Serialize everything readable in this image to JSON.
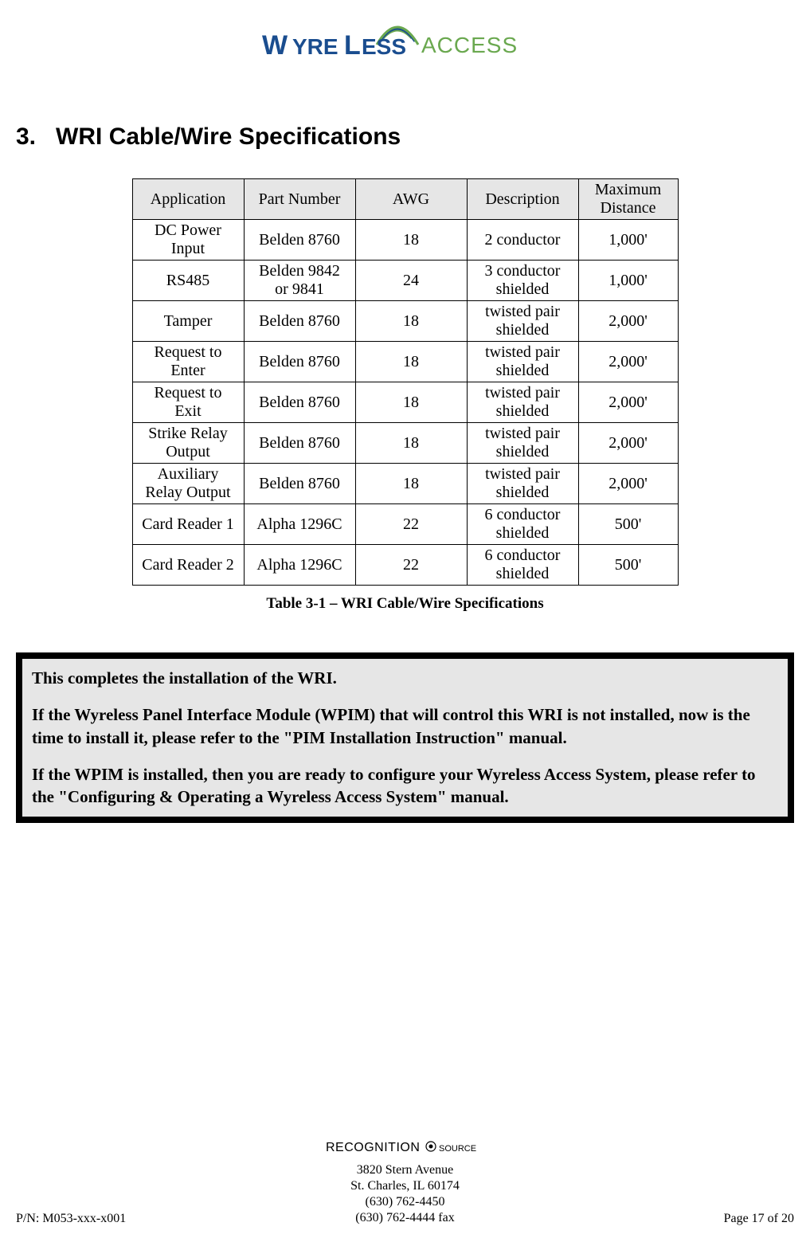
{
  "header": {
    "logo_text_main": "WYRELESS",
    "logo_text_sub": "ACCESS",
    "logo_color_main": "#1a4d8f",
    "logo_color_sub": "#6aa84f",
    "logo_arc_color1": "#6aa84f",
    "logo_arc_color2": "#1a4d8f"
  },
  "section": {
    "number": "3.",
    "title": "WRI Cable/Wire Specifications"
  },
  "table": {
    "columns": [
      "Application",
      "Part Number",
      "AWG",
      "Description",
      "Maximum Distance"
    ],
    "header_bg": "#e6e6e6",
    "border_color": "#000000",
    "rows": [
      [
        "DC Power Input",
        "Belden 8760",
        "18",
        "2 conductor",
        "1,000'"
      ],
      [
        "RS485",
        "Belden 9842 or 9841",
        "24",
        "3 conductor shielded",
        "1,000'"
      ],
      [
        "Tamper",
        "Belden 8760",
        "18",
        "twisted pair shielded",
        "2,000'"
      ],
      [
        "Request to Enter",
        "Belden 8760",
        "18",
        "twisted pair shielded",
        "2,000'"
      ],
      [
        "Request to Exit",
        "Belden 8760",
        "18",
        "twisted pair shielded",
        "2,000'"
      ],
      [
        "Strike Relay Output",
        "Belden 8760",
        "18",
        "twisted pair shielded",
        "2,000'"
      ],
      [
        "Auxiliary Relay Output",
        "Belden 8760",
        "18",
        "twisted pair shielded",
        "2,000'"
      ],
      [
        "Card Reader 1",
        "Alpha 1296C",
        "22",
        "6 conductor shielded",
        "500'"
      ],
      [
        "Card Reader 2",
        "Alpha 1296C",
        "22",
        "6 conductor shielded",
        "500'"
      ]
    ],
    "caption": "Table 3-1 – WRI Cable/Wire Specifications"
  },
  "info_box": {
    "outer_bg": "#000000",
    "inner_bg": "#e6e6e6",
    "paragraphs": [
      "This completes the installation of the WRI.",
      "If the Wyreless Panel Interface Module (WPIM) that will control this WRI is not installed, now is the time to install it, please refer to the \"PIM Installation Instruction\" manual.",
      "If the WPIM is installed, then you are ready to configure your Wyreless Access  System, please refer to the \"Configuring & Operating a Wyreless Access System\" manual."
    ]
  },
  "footer": {
    "logo_text_main": "RECOGNITION",
    "logo_text_sub": "SOURCE",
    "address1": "3820 Stern Avenue",
    "address2": "St. Charles, IL 60174",
    "phone": "(630) 762-4450",
    "fax": "(630) 762-4444 fax",
    "pn": "P/N: M053-xxx-x001",
    "page": "Page 17 of 20"
  }
}
